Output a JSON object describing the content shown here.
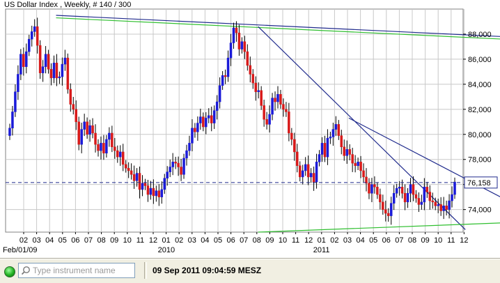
{
  "chart_data": {
    "type": "candlestick",
    "title": "US Dollar Index , Weekly, # 140 / 300",
    "ylim": [
      72.2,
      90.0
    ],
    "y_ticks": [
      74,
      76,
      78,
      80,
      82,
      84,
      86,
      88
    ],
    "y_tick_labels": [
      "74,000",
      "76,000",
      "78,000",
      "80,000",
      "82,000",
      "84,000",
      "86,000",
      "88,000"
    ],
    "month_labels": [
      "02",
      "03",
      "04",
      "05",
      "06",
      "07",
      "08",
      "09",
      "10",
      "11",
      "12",
      "01",
      "02",
      "03",
      "04",
      "05",
      "06",
      "07",
      "08",
      "09",
      "10",
      "11",
      "12",
      "01",
      "02",
      "03",
      "04",
      "05",
      "06",
      "07",
      "08",
      "09",
      "10",
      "11",
      "12"
    ],
    "year_labels": [
      {
        "label": "Feb/01/09",
        "month_index": 0
      },
      {
        "label": "2010",
        "month_index": 11
      },
      {
        "label": "2011",
        "month_index": 23
      }
    ],
    "current_price": 76.158,
    "current_price_label": "76,158",
    "colors": {
      "up": "#1a1ad8",
      "down": "#d81a1a",
      "grid": "#c8c8c8",
      "trendline": "#1f2a8c",
      "channel": "#2fbf2f",
      "price_line": "#1f2a8c"
    },
    "trendlines": [
      {
        "color": "trendline",
        "from": [
          2.5,
          89.5
        ],
        "to": [
          41.1,
          87.6
        ]
      },
      {
        "color": "channel",
        "from": [
          2.5,
          89.3
        ],
        "to": [
          41.1,
          87.4
        ]
      },
      {
        "color": "trendline",
        "from": [
          18.1,
          88.6
        ],
        "to": [
          34.1,
          72.4
        ]
      },
      {
        "color": "trendline",
        "from": [
          25.1,
          81.3
        ],
        "to": [
          41.1,
          72.7
        ]
      },
      {
        "color": "channel",
        "from": [
          18.1,
          72.2
        ],
        "to": [
          41.1,
          73.1
        ]
      }
    ],
    "closes": [
      80.5,
      81.8,
      83.4,
      84.8,
      86.4,
      85.4,
      86.6,
      87.6,
      88.2,
      88.6,
      87.1,
      84.9,
      85.4,
      86.4,
      85.2,
      84.5,
      85.7,
      84.5,
      84.6,
      85.6,
      86.1,
      83.6,
      82.4,
      82.0,
      81.0,
      79.2,
      80.4,
      81.0,
      80.0,
      80.7,
      80.1,
      79.2,
      78.7,
      79.3,
      78.5,
      79.6,
      80.1,
      79.0,
      78.7,
      78.2,
      78.6,
      77.6,
      77.3,
      77.1,
      76.8,
      76.3,
      76.9,
      75.6,
      76.1,
      75.9,
      75.2,
      75.7,
      75.1,
      75.5,
      75.0,
      75.6,
      76.5,
      77.0,
      77.4,
      77.8,
      77.7,
      77.4,
      76.8,
      78.1,
      78.7,
      79.3,
      80.5,
      80.2,
      80.9,
      81.4,
      80.6,
      81.3,
      81.5,
      80.9,
      81.9,
      82.6,
      83.9,
      84.7,
      84.6,
      86.1,
      87.3,
      88.5,
      88.1,
      86.8,
      87.4,
      86.6,
      85.5,
      84.8,
      84.1,
      83.4,
      83.5,
      82.3,
      81.2,
      80.8,
      81.6,
      82.9,
      82.6,
      83.2,
      82.4,
      82.0,
      81.8,
      80.1,
      79.6,
      78.6,
      77.5,
      76.6,
      77.1,
      77.6,
      76.6,
      76.9,
      76.2,
      77.8,
      78.4,
      79.3,
      78.2,
      79.7,
      79.8,
      80.4,
      80.8,
      79.9,
      79.0,
      78.3,
      78.8,
      78.4,
      77.7,
      77.5,
      77.8,
      77.1,
      76.6,
      76.1,
      75.3,
      76.0,
      75.8,
      75.2,
      74.6,
      74.0,
      73.7,
      73.5,
      74.5,
      75.3,
      75.7,
      75.8,
      75.3,
      74.6,
      75.3,
      76.0,
      75.2,
      74.9,
      74.4,
      74.6,
      75.8,
      75.4,
      74.7,
      74.6,
      74.3,
      74.4,
      73.9,
      74.3,
      74.0,
      74.7,
      75.2,
      76.2
    ]
  },
  "status_bar": {
    "search_placeholder": "Type instrument name",
    "datetime": "09 Sep 2011 09:04:59 MESZ"
  }
}
